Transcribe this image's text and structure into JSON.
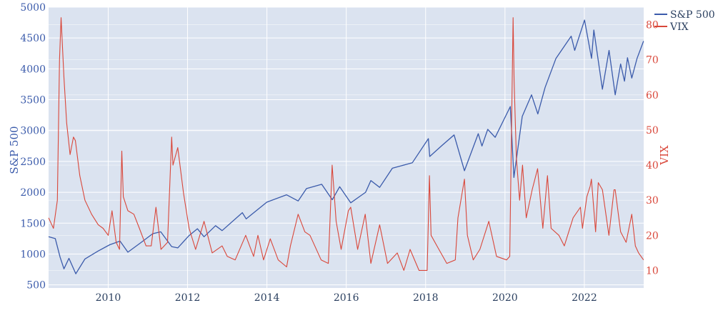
{
  "chart_data": {
    "type": "line",
    "title": "",
    "xlabel": "",
    "x_ticks": [
      "2010",
      "2012",
      "2014",
      "2016",
      "2018",
      "2020",
      "2022"
    ],
    "x_range": [
      "2008-07-01",
      "2023-07-01"
    ],
    "y_left": {
      "label": "S&P 500",
      "range": [
        450,
        5000
      ],
      "ticks": [
        "500",
        "1000",
        "1500",
        "2000",
        "2500",
        "3000",
        "3500",
        "4000",
        "4500",
        "5000"
      ]
    },
    "y_right": {
      "label": "VIX",
      "range": [
        5,
        85
      ],
      "ticks": [
        "10",
        "20",
        "30",
        "40",
        "50",
        "60",
        "70",
        "80"
      ]
    },
    "legend_position": "top-right",
    "grid": true,
    "colors": {
      "plot_bg": "#dbe3f0",
      "grid": "#ffffff",
      "sp500": "#3b5bab",
      "vix": "#d9473a"
    },
    "series": [
      {
        "name": "S&P 500",
        "axis": "left",
        "x": [
          "2008-07-01",
          "2008-09-01",
          "2008-10-15",
          "2008-11-20",
          "2009-01-05",
          "2009-03-09",
          "2009-06-01",
          "2009-10-01",
          "2010-01-15",
          "2010-04-20",
          "2010-07-01",
          "2010-11-01",
          "2011-02-15",
          "2011-04-29",
          "2011-08-08",
          "2011-10-03",
          "2012-01-15",
          "2012-04-01",
          "2012-06-01",
          "2012-09-15",
          "2012-11-15",
          "2013-05-20",
          "2013-06-24",
          "2013-12-31",
          "2014-06-30",
          "2014-10-15",
          "2014-12-31",
          "2015-05-20",
          "2015-08-25",
          "2015-11-01",
          "2016-02-11",
          "2016-06-27",
          "2016-08-15",
          "2016-11-04",
          "2017-03-01",
          "2017-09-01",
          "2018-01-26",
          "2018-02-08",
          "2018-06-01",
          "2018-09-20",
          "2018-12-24",
          "2019-04-30",
          "2019-06-03",
          "2019-07-26",
          "2019-10-03",
          "2020-02-19",
          "2020-03-23",
          "2020-06-08",
          "2020-09-02",
          "2020-10-30",
          "2021-01-05",
          "2021-04-15",
          "2021-09-02",
          "2021-10-04",
          "2022-01-03",
          "2022-03-08",
          "2022-03-29",
          "2022-06-16",
          "2022-08-16",
          "2022-10-12",
          "2022-12-01",
          "2023-01-05",
          "2023-02-02",
          "2023-03-13",
          "2023-05-01",
          "2023-06-30"
        ],
        "values": [
          1280,
          1250,
          950,
          760,
          930,
          680,
          920,
          1050,
          1150,
          1210,
          1030,
          1190,
          1330,
          1360,
          1120,
          1100,
          1300,
          1410,
          1280,
          1460,
          1380,
          1670,
          1570,
          1840,
          1960,
          1860,
          2060,
          2130,
          1880,
          2090,
          1830,
          2000,
          2190,
          2080,
          2390,
          2480,
          2870,
          2580,
          2760,
          2930,
          2350,
          2950,
          2750,
          3020,
          2890,
          3390,
          2240,
          3230,
          3580,
          3270,
          3700,
          4170,
          4530,
          4300,
          4790,
          4170,
          4630,
          3670,
          4300,
          3580,
          4080,
          3800,
          4180,
          3850,
          4170,
          4450
        ]
      },
      {
        "name": "VIX",
        "axis": "right",
        "x": [
          "2008-07-01",
          "2008-08-15",
          "2008-09-20",
          "2008-10-10",
          "2008-10-24",
          "2008-11-20",
          "2008-12-15",
          "2009-01-15",
          "2009-02-15",
          "2009-03-05",
          "2009-04-15",
          "2009-06-01",
          "2009-08-01",
          "2009-10-01",
          "2009-11-15",
          "2010-01-01",
          "2010-02-05",
          "2010-03-15",
          "2010-04-15",
          "2010-05-06",
          "2010-05-20",
          "2010-07-01",
          "2010-08-25",
          "2010-10-15",
          "2010-12-15",
          "2011-02-01",
          "2011-03-16",
          "2011-05-01",
          "2011-07-01",
          "2011-08-08",
          "2011-08-20",
          "2011-10-03",
          "2011-11-25",
          "2012-01-15",
          "2012-03-15",
          "2012-06-01",
          "2012-08-15",
          "2012-11-15",
          "2013-01-01",
          "2013-03-15",
          "2013-06-20",
          "2013-09-01",
          "2013-10-10",
          "2013-12-01",
          "2014-02-01",
          "2014-04-15",
          "2014-07-01",
          "2014-08-05",
          "2014-10-15",
          "2014-12-16",
          "2015-02-01",
          "2015-05-15",
          "2015-07-20",
          "2015-08-24",
          "2015-09-30",
          "2015-11-15",
          "2016-01-20",
          "2016-02-11",
          "2016-04-15",
          "2016-06-24",
          "2016-08-15",
          "2016-11-04",
          "2017-01-15",
          "2017-04-15",
          "2017-06-15",
          "2017-08-11",
          "2017-11-01",
          "2018-01-15",
          "2018-02-05",
          "2018-02-20",
          "2018-04-15",
          "2018-07-15",
          "2018-10-01",
          "2018-10-25",
          "2018-12-24",
          "2019-01-20",
          "2019-03-15",
          "2019-05-15",
          "2019-08-05",
          "2019-10-15",
          "2020-01-15",
          "2020-02-14",
          "2020-03-16",
          "2020-03-25",
          "2020-04-15",
          "2020-05-15",
          "2020-06-11",
          "2020-07-15",
          "2020-09-08",
          "2020-10-28",
          "2020-12-15",
          "2021-01-27",
          "2021-03-01",
          "2021-05-12",
          "2021-07-01",
          "2021-09-20",
          "2021-11-26",
          "2021-12-15",
          "2022-01-24",
          "2022-02-24",
          "2022-03-07",
          "2022-04-15",
          "2022-05-09",
          "2022-06-16",
          "2022-08-15",
          "2022-10-01",
          "2022-10-12",
          "2022-12-01",
          "2023-01-20",
          "2023-03-13",
          "2023-04-15",
          "2023-05-15",
          "2023-06-30"
        ],
        "values": [
          25,
          22,
          30,
          70,
          82,
          65,
          52,
          43,
          48,
          47,
          37,
          30,
          26,
          23,
          22,
          20,
          27,
          18,
          16,
          44,
          31,
          27,
          26,
          22,
          17,
          17,
          28,
          16,
          18,
          48,
          40,
          45,
          32,
          22,
          16,
          24,
          15,
          17,
          14,
          13,
          20,
          14,
          20,
          13,
          19,
          13,
          11,
          17,
          26,
          21,
          20,
          13,
          12,
          40,
          24,
          16,
          27,
          28,
          16,
          26,
          12,
          23,
          12,
          15,
          10,
          16,
          10,
          10,
          37,
          20,
          17,
          12,
          13,
          25,
          36,
          20,
          13,
          16,
          24,
          14,
          13,
          14,
          82,
          64,
          42,
          30,
          40,
          25,
          33,
          39,
          22,
          37,
          22,
          20,
          17,
          25,
          28,
          22,
          31,
          34,
          36,
          21,
          35,
          33,
          20,
          33,
          33,
          21,
          18,
          26,
          17,
          15,
          13
        ]
      }
    ]
  }
}
